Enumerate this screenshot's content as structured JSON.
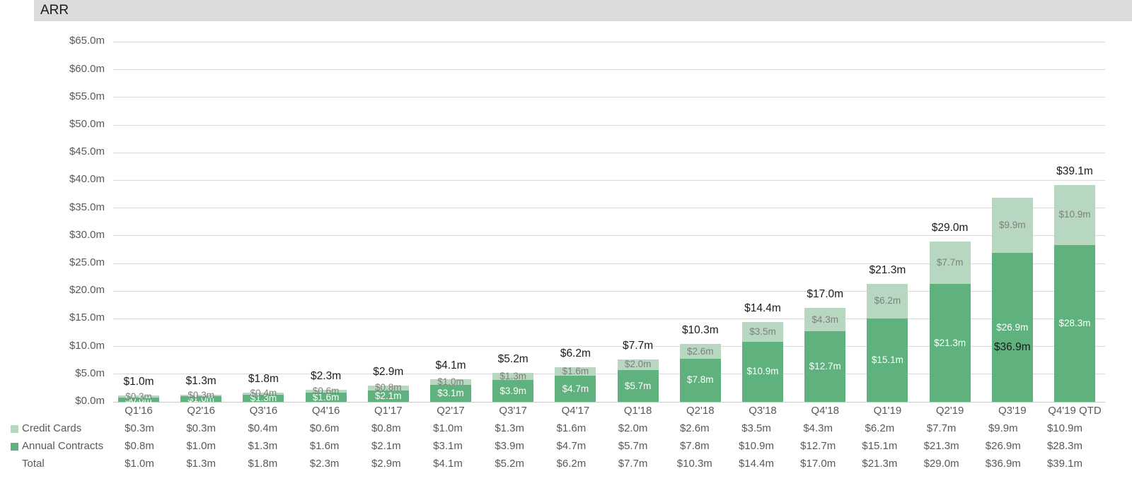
{
  "header": {
    "title": "ARR"
  },
  "chart_data": {
    "type": "bar",
    "stacked": true,
    "title": "ARR",
    "categories": [
      "Q1'16",
      "Q2'16",
      "Q3'16",
      "Q4'16",
      "Q1'17",
      "Q2'17",
      "Q3'17",
      "Q4'17",
      "Q1'18",
      "Q2'18",
      "Q3'18",
      "Q4'18",
      "Q1'19",
      "Q2'19",
      "Q3'19",
      "Q4'19 QTD"
    ],
    "series": [
      {
        "name": "Credit Cards",
        "color": "#b7d7c0",
        "label_color": "#7f7f7f",
        "values": [
          0.3,
          0.3,
          0.4,
          0.6,
          0.8,
          1.0,
          1.3,
          1.6,
          2.0,
          2.6,
          3.5,
          4.3,
          6.2,
          7.7,
          9.9,
          10.9
        ],
        "labels": [
          "$0.3m",
          "$0.3m",
          "$0.4m",
          "$0.6m",
          "$0.8m",
          "$1.0m",
          "$1.3m",
          "$1.6m",
          "$2.0m",
          "$2.6m",
          "$3.5m",
          "$4.3m",
          "$6.2m",
          "$7.7m",
          "$9.9m",
          "$10.9m"
        ]
      },
      {
        "name": "Annual Contracts",
        "color": "#5fb17e",
        "label_color": "#ffffff",
        "values": [
          0.8,
          1.0,
          1.3,
          1.6,
          2.1,
          3.1,
          3.9,
          4.7,
          5.7,
          7.8,
          10.9,
          12.7,
          15.1,
          21.3,
          26.9,
          28.3
        ],
        "labels": [
          "$0.8m",
          "$1.0m",
          "$1.3m",
          "$1.6m",
          "$2.1m",
          "$3.1m",
          "$3.9m",
          "$4.7m",
          "$5.7m",
          "$7.8m",
          "$10.9m",
          "$12.7m",
          "$15.1m",
          "$21.3m",
          "$26.9m",
          "$28.3m"
        ]
      }
    ],
    "totals": {
      "name": "Total",
      "values": [
        1.0,
        1.3,
        1.8,
        2.3,
        2.9,
        4.1,
        5.2,
        6.2,
        7.7,
        10.3,
        14.4,
        17.0,
        21.3,
        29.0,
        36.9,
        39.1
      ],
      "labels": [
        "$1.0m",
        "$1.3m",
        "$1.8m",
        "$2.3m",
        "$2.9m",
        "$4.1m",
        "$5.2m",
        "$6.2m",
        "$7.7m",
        "$10.3m",
        "$14.4m",
        "$17.0m",
        "$21.3m",
        "$29.0m",
        "$36.9m",
        "$39.1m"
      ],
      "inside_label_categories": [
        "Q3'19"
      ]
    },
    "y_axis": {
      "min": 0,
      "max": 65,
      "step": 5,
      "tick_labels": [
        "$0.0m",
        "$5.0m",
        "$10.0m",
        "$15.0m",
        "$20.0m",
        "$25.0m",
        "$30.0m",
        "$35.0m",
        "$40.0m",
        "$45.0m",
        "$50.0m",
        "$55.0m",
        "$60.0m",
        "$65.0m"
      ]
    },
    "grid": true,
    "legend_position": "bottom-left-table"
  },
  "table": {
    "rows": [
      {
        "label": "Credit Cards",
        "swatch": "#b7d7c0",
        "values": [
          "$0.3m",
          "$0.3m",
          "$0.4m",
          "$0.6m",
          "$0.8m",
          "$1.0m",
          "$1.3m",
          "$1.6m",
          "$2.0m",
          "$2.6m",
          "$3.5m",
          "$4.3m",
          "$6.2m",
          "$7.7m",
          "$9.9m",
          "$10.9m"
        ]
      },
      {
        "label": "Annual Contracts",
        "swatch": "#5fb17e",
        "values": [
          "$0.8m",
          "$1.0m",
          "$1.3m",
          "$1.6m",
          "$2.1m",
          "$3.1m",
          "$3.9m",
          "$4.7m",
          "$5.7m",
          "$7.8m",
          "$10.9m",
          "$12.7m",
          "$15.1m",
          "$21.3m",
          "$26.9m",
          "$28.3m"
        ]
      },
      {
        "label": "Total",
        "swatch": null,
        "values": [
          "$1.0m",
          "$1.3m",
          "$1.8m",
          "$2.3m",
          "$2.9m",
          "$4.1m",
          "$5.2m",
          "$6.2m",
          "$7.7m",
          "$10.3m",
          "$14.4m",
          "$17.0m",
          "$21.3m",
          "$29.0m",
          "$36.9m",
          "$39.1m"
        ]
      }
    ]
  }
}
